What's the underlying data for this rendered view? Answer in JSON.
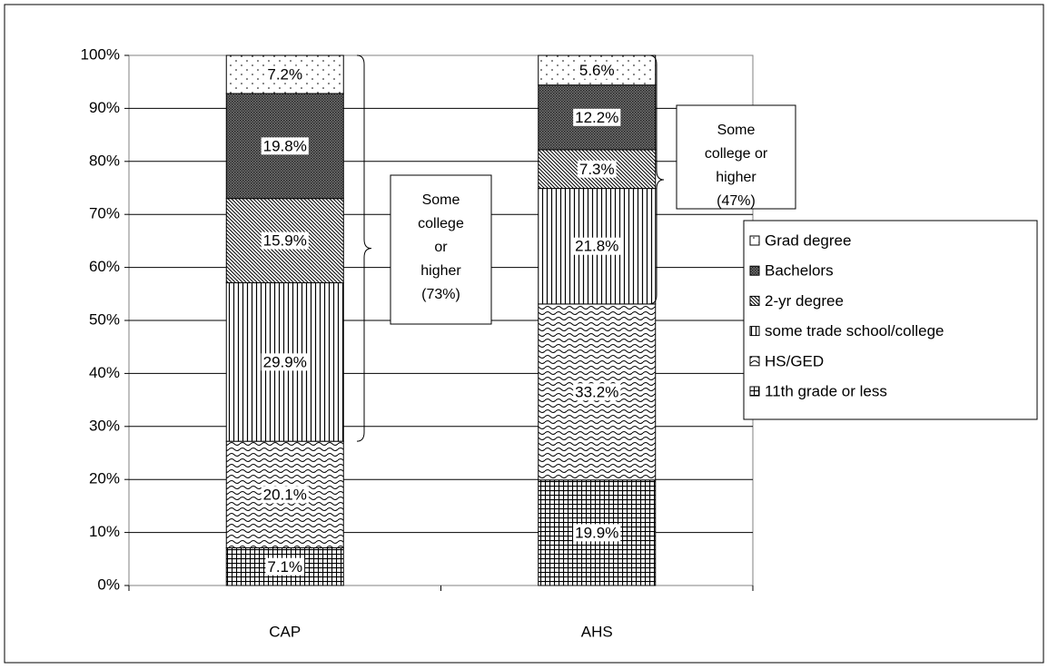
{
  "chart_data": {
    "type": "stacked_bar",
    "categories": [
      "CAP",
      "AHS"
    ],
    "series": [
      {
        "name": "11th grade or less",
        "values": [
          7.1,
          19.9
        ],
        "value_labels": [
          "7.1%",
          "19.9%"
        ]
      },
      {
        "name": "HS/GED",
        "values": [
          20.1,
          33.2
        ],
        "value_labels": [
          "20.1%",
          "33.2%"
        ]
      },
      {
        "name": "some trade school/college",
        "values": [
          29.9,
          21.8
        ],
        "value_labels": [
          "29.9%",
          "21.8%"
        ]
      },
      {
        "name": "2-yr degree",
        "values": [
          15.9,
          7.3
        ],
        "value_labels": [
          "15.9%",
          "7.3%"
        ]
      },
      {
        "name": "Bachelors",
        "values": [
          19.8,
          12.2
        ],
        "value_labels": [
          "19.8%",
          "12.2%"
        ]
      },
      {
        "name": "Grad degree",
        "values": [
          7.2,
          5.6
        ],
        "value_labels": [
          "7.2%",
          "5.6%"
        ]
      }
    ],
    "ylim": [
      0,
      100
    ],
    "yticks": [
      {
        "value": 0,
        "label": "0%"
      },
      {
        "value": 10,
        "label": "10%"
      },
      {
        "value": 20,
        "label": "20%"
      },
      {
        "value": 30,
        "label": "30%"
      },
      {
        "value": 40,
        "label": "40%"
      },
      {
        "value": 50,
        "label": "50%"
      },
      {
        "value": 60,
        "label": "60%"
      },
      {
        "value": 70,
        "label": "70%"
      },
      {
        "value": 80,
        "label": "80%"
      },
      {
        "value": 90,
        "label": "90%"
      },
      {
        "value": 100,
        "label": "100%"
      }
    ],
    "grid": true,
    "legend": "right",
    "annotations": [
      {
        "lines": [
          "Some",
          "college",
          "or",
          "higher",
          "(73%)"
        ]
      },
      {
        "lines": [
          "Some",
          "college or",
          "higher",
          "(47%)"
        ]
      }
    ]
  }
}
